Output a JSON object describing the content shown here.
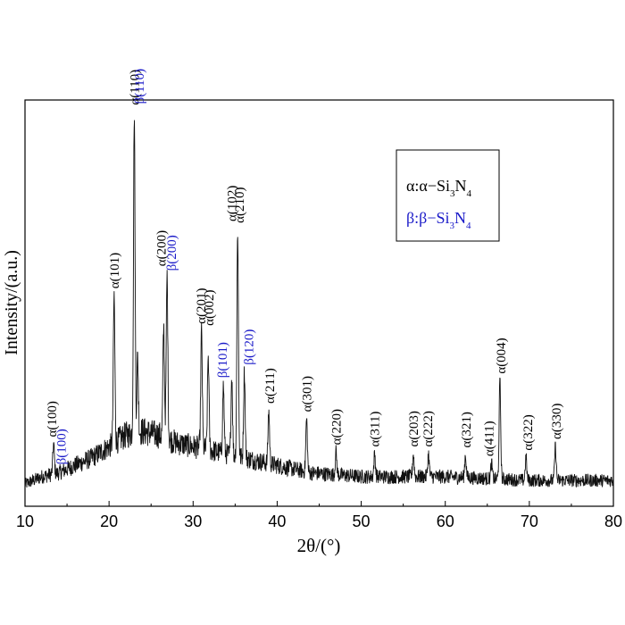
{
  "chart_data": {
    "type": "line",
    "title": "",
    "xlabel": "2θ/(°)",
    "ylabel": "Intensity/(a.u.)",
    "xlim": [
      10,
      80
    ],
    "ylim": [
      0,
      100
    ],
    "xticks": [
      10,
      20,
      30,
      40,
      50,
      60,
      70,
      80
    ],
    "x_tick_labels": [
      "10",
      "20",
      "30",
      "40",
      "50",
      "60",
      "70",
      "80"
    ],
    "grid": false,
    "legend_position": "top-right",
    "legend": [
      {
        "prefix": "α:α−Si",
        "sub1": "3",
        "mid": "N",
        "sub2": "4",
        "color": "#000000"
      },
      {
        "prefix": "β:β−Si",
        "sub1": "3",
        "mid": "N",
        "sub2": "4",
        "color": "#1a1ac8"
      }
    ],
    "colors": {
      "alpha": "#000000",
      "beta": "#1a1ac8",
      "line": "#111111"
    },
    "series": [
      {
        "values_note": "",
        "baseline": [
          [
            10,
            3
          ],
          [
            12,
            5
          ],
          [
            14,
            6
          ],
          [
            16,
            8
          ],
          [
            18,
            10
          ],
          [
            20,
            13
          ],
          [
            22,
            16
          ],
          [
            24,
            17
          ],
          [
            26,
            16
          ],
          [
            28,
            14
          ],
          [
            30,
            13
          ],
          [
            32,
            12
          ],
          [
            34,
            11
          ],
          [
            36,
            10
          ],
          [
            38,
            9
          ],
          [
            40,
            8
          ],
          [
            44,
            6
          ],
          [
            50,
            5
          ],
          [
            60,
            5
          ],
          [
            70,
            4
          ],
          [
            80,
            4
          ]
        ],
        "peaks": [
          [
            13.4,
            8
          ],
          [
            20.6,
            39
          ],
          [
            23.0,
            85
          ],
          [
            23.4,
            20
          ],
          [
            26.5,
            29
          ],
          [
            26.9,
            43
          ],
          [
            31.0,
            31
          ],
          [
            31.8,
            25
          ],
          [
            33.6,
            18
          ],
          [
            34.6,
            21
          ],
          [
            35.3,
            60
          ],
          [
            36.1,
            23
          ],
          [
            39.0,
            14
          ],
          [
            43.5,
            14
          ],
          [
            47.0,
            6
          ],
          [
            51.6,
            6
          ],
          [
            56.2,
            6
          ],
          [
            58.0,
            6
          ],
          [
            62.4,
            6
          ],
          [
            65.5,
            4
          ],
          [
            66.5,
            26
          ],
          [
            69.6,
            6
          ],
          [
            73.1,
            9
          ]
        ]
      }
    ],
    "annotations": [
      {
        "text": "α(100)",
        "x": 13.2,
        "color": "#000000",
        "stack": 0
      },
      {
        "text": "β(100)",
        "x": 14.3,
        "color": "#1a1ac8",
        "stack": 0
      },
      {
        "text": "α(101)",
        "x": 20.6,
        "color": "#000000",
        "stack": 0
      },
      {
        "text": "α(110)",
        "x": 23.0,
        "color": "#000000",
        "stack": 0
      },
      {
        "text": "β(110)",
        "x": 23.6,
        "color": "#1a1ac8",
        "stack": 0
      },
      {
        "text": "α(200)",
        "x": 26.2,
        "color": "#000000",
        "stack": 0
      },
      {
        "text": "β(200)",
        "x": 27.4,
        "color": "#1a1ac8",
        "stack": 0
      },
      {
        "text": "α(201)",
        "x": 30.9,
        "color": "#000000",
        "stack": 0
      },
      {
        "text": "α(002)",
        "x": 31.9,
        "color": "#000000",
        "stack": 0
      },
      {
        "text": "β(101)",
        "x": 33.5,
        "color": "#1a1ac8",
        "stack": 0
      },
      {
        "text": "α(102)",
        "x": 34.6,
        "color": "#000000",
        "stack": 0
      },
      {
        "text": "α(210)",
        "x": 35.5,
        "color": "#000000",
        "stack": 0
      },
      {
        "text": "β(120)",
        "x": 36.6,
        "color": "#1a1ac8",
        "stack": 0
      },
      {
        "text": "α(211)",
        "x": 39.1,
        "color": "#000000",
        "stack": 0
      },
      {
        "text": "α(301)",
        "x": 43.5,
        "color": "#000000",
        "stack": 0
      },
      {
        "text": "α(220)",
        "x": 47.0,
        "color": "#000000",
        "stack": 0
      },
      {
        "text": "α(311)",
        "x": 51.6,
        "color": "#000000",
        "stack": 0
      },
      {
        "text": "α(203)",
        "x": 56.2,
        "color": "#000000",
        "stack": 0
      },
      {
        "text": "α(222)",
        "x": 57.9,
        "color": "#000000",
        "stack": 0
      },
      {
        "text": "α(321)",
        "x": 62.5,
        "color": "#000000",
        "stack": 0
      },
      {
        "text": "α(411)",
        "x": 65.2,
        "color": "#000000",
        "stack": 0
      },
      {
        "text": "α(004)",
        "x": 66.6,
        "color": "#000000",
        "stack": 0
      },
      {
        "text": "α(322)",
        "x": 69.8,
        "color": "#000000",
        "stack": 0
      },
      {
        "text": "α(330)",
        "x": 73.2,
        "color": "#000000",
        "stack": 0
      }
    ]
  }
}
